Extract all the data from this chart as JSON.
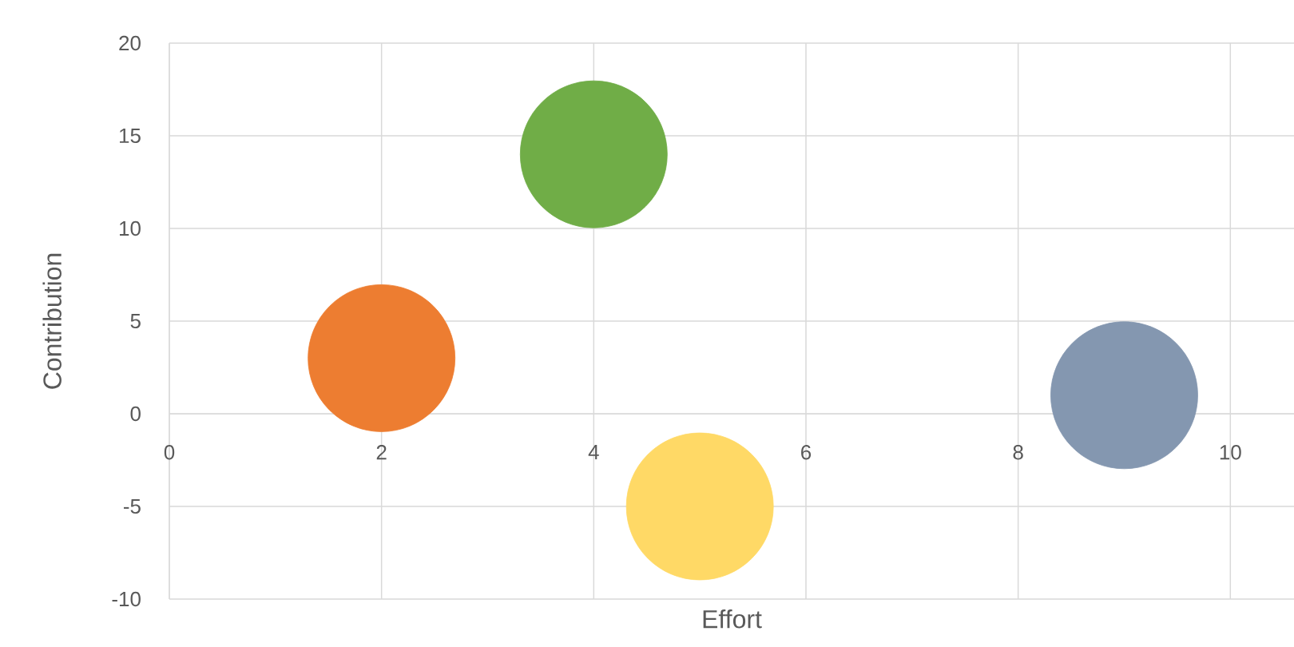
{
  "chart_data": {
    "type": "bubble",
    "xlabel": "Effort",
    "ylabel": "Contribution",
    "x": [
      2,
      4,
      5,
      9
    ],
    "values": [
      3,
      14,
      -5,
      1
    ],
    "sizes": [
      1,
      1,
      1,
      1
    ],
    "colors": [
      "#ed7d31",
      "#70ad47",
      "#ffd966",
      "#8497b0"
    ],
    "xlim": [
      0,
      10.6
    ],
    "ylim": [
      -10,
      20
    ],
    "xticks": [
      0,
      2,
      4,
      6,
      8,
      10
    ],
    "yticks": [
      -10,
      -5,
      0,
      5,
      10,
      15,
      20
    ],
    "grid": true
  }
}
